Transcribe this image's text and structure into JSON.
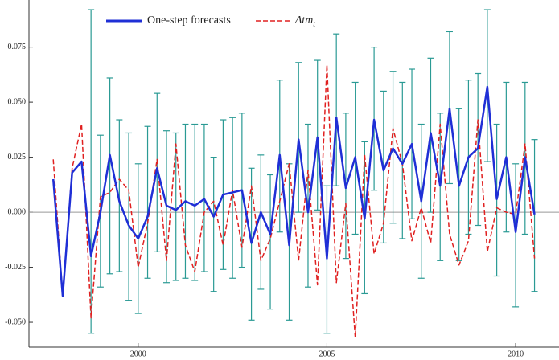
{
  "chart_data": {
    "type": "line",
    "x": [
      1997.75,
      1998,
      1998.25,
      1998.5,
      1998.75,
      1999,
      1999.25,
      1999.5,
      1999.75,
      2000,
      2000.25,
      2000.5,
      2000.75,
      2001,
      2001.25,
      2001.5,
      2001.75,
      2002,
      2002.25,
      2002.5,
      2002.75,
      2003,
      2003.25,
      2003.5,
      2003.75,
      2004,
      2004.25,
      2004.5,
      2004.75,
      2005,
      2005.25,
      2005.5,
      2005.75,
      2006,
      2006.25,
      2006.5,
      2006.75,
      2007,
      2007.25,
      2007.5,
      2007.75,
      2008,
      2008.25,
      2008.5,
      2008.75,
      2009,
      2009.25,
      2009.5,
      2009.75,
      2010,
      2010.25,
      2010.5
    ],
    "series": [
      {
        "name": "One-step forecasts",
        "color": "#1f2fd6",
        "error_color": "#2a9a94",
        "values": [
          0.015,
          -0.038,
          0.018,
          0.023,
          -0.02,
          0.0,
          0.026,
          0.005,
          -0.006,
          -0.012,
          -0.002,
          0.02,
          0.003,
          0.001,
          0.005,
          0.003,
          0.006,
          -0.002,
          0.008,
          0.009,
          0.01,
          -0.014,
          0.0,
          -0.01,
          0.026,
          -0.015,
          0.033,
          0.0,
          0.034,
          -0.021,
          0.043,
          0.011,
          0.025,
          -0.003,
          0.042,
          0.019,
          0.029,
          0.022,
          0.031,
          0.005,
          0.036,
          0.012,
          0.047,
          0.012,
          0.025,
          0.029,
          0.057,
          0.006,
          0.025,
          -0.009,
          0.025,
          -0.001
        ],
        "lower": [
          null,
          null,
          null,
          null,
          -0.055,
          -0.034,
          -0.028,
          -0.027,
          -0.04,
          -0.046,
          -0.03,
          -0.018,
          -0.032,
          -0.031,
          -0.03,
          -0.031,
          -0.027,
          -0.036,
          -0.026,
          -0.03,
          -0.025,
          -0.049,
          -0.035,
          -0.044,
          -0.009,
          -0.049,
          0.0,
          -0.034,
          0.001,
          -0.055,
          0.012,
          -0.021,
          -0.01,
          -0.037,
          0.01,
          -0.014,
          -0.005,
          -0.012,
          -0.003,
          -0.03,
          0.0,
          -0.022,
          0.013,
          -0.022,
          -0.01,
          -0.006,
          0.023,
          -0.029,
          -0.009,
          -0.043,
          -0.01,
          -0.036
        ],
        "upper": [
          null,
          null,
          null,
          null,
          0.092,
          0.035,
          0.061,
          0.042,
          0.036,
          0.022,
          0.039,
          0.054,
          0.037,
          0.036,
          0.04,
          0.04,
          0.04,
          0.025,
          0.042,
          0.043,
          0.045,
          0.02,
          0.026,
          0.017,
          0.06,
          0.022,
          0.068,
          0.04,
          0.069,
          0.012,
          0.081,
          0.045,
          0.059,
          0.032,
          0.075,
          0.055,
          0.064,
          0.059,
          0.065,
          0.04,
          0.07,
          0.045,
          0.082,
          0.047,
          0.06,
          0.063,
          0.092,
          0.04,
          0.059,
          0.022,
          0.059,
          0.033
        ]
      },
      {
        "name": "Δtm",
        "name_subscript": "t",
        "color": "#e02020",
        "dashed": true,
        "values": [
          0.024,
          -0.038,
          0.02,
          0.04,
          -0.048,
          0.007,
          0.009,
          0.015,
          0.01,
          -0.025,
          -0.005,
          0.024,
          -0.022,
          0.031,
          -0.015,
          -0.027,
          0.0,
          0.005,
          -0.015,
          0.01,
          -0.016,
          0.012,
          -0.022,
          -0.012,
          0.005,
          0.022,
          -0.022,
          0.019,
          -0.033,
          0.067,
          -0.032,
          0.004,
          -0.057,
          0.026,
          -0.019,
          -0.005,
          0.038,
          0.022,
          -0.013,
          0.002,
          -0.014,
          0.04,
          -0.01,
          -0.024,
          -0.013,
          0.042,
          -0.018,
          0.002,
          0.0,
          -0.001,
          0.031,
          -0.021
        ]
      }
    ],
    "xlim": [
      1997.106,
      2011.149
    ],
    "xticks": [
      2000,
      2005,
      2010
    ],
    "ylim": [
      -0.0613,
      0.0964
    ],
    "yticks": [
      -0.05,
      -0.025,
      0,
      0.025,
      0.05,
      0.075
    ],
    "ytick_labels": [
      "-0.050",
      "-0.025",
      "0.000",
      "0.025",
      "0.050",
      "0.075"
    ]
  }
}
